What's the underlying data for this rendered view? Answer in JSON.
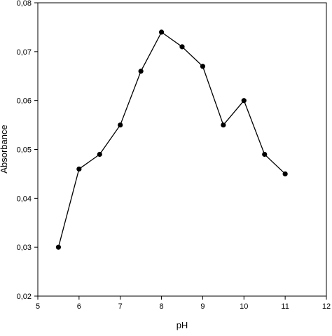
{
  "chart_data": {
    "type": "line",
    "title": "",
    "xlabel": "pH",
    "ylabel": "Absorbance",
    "xlim": [
      5,
      12
    ],
    "ylim": [
      0.02,
      0.08
    ],
    "xticks": [
      5,
      6,
      7,
      8,
      9,
      10,
      11,
      12
    ],
    "xtick_labels": [
      "5",
      "6",
      "7",
      "8",
      "9",
      "10",
      "11",
      "12"
    ],
    "yticks": [
      0.02,
      0.03,
      0.04,
      0.05,
      0.06,
      0.07,
      0.08
    ],
    "ytick_labels": [
      "0,02",
      "0,03",
      "0,04",
      "0,05",
      "0,06",
      "0,07",
      "0,08"
    ],
    "grid": false,
    "series": [
      {
        "x": [
          5.5,
          6,
          6.5,
          7,
          7.5,
          8,
          8.5,
          9,
          9.5,
          10,
          10.5,
          11
        ],
        "y": [
          0.03,
          0.046,
          0.049,
          0.055,
          0.066,
          0.074,
          0.071,
          0.067,
          0.055,
          0.06,
          0.049,
          0.045
        ],
        "color": "#000000",
        "marker": "filled-circle"
      }
    ]
  }
}
